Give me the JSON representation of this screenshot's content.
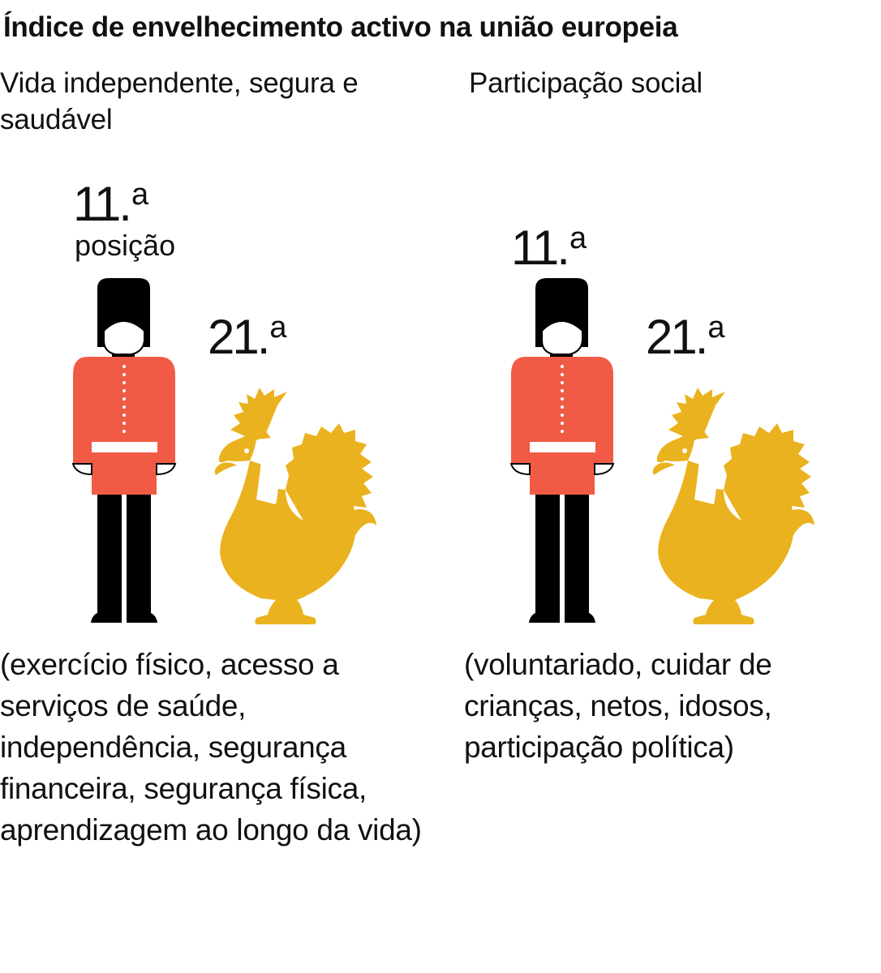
{
  "title": "Índice de envelhecimento activo na união europeia",
  "colors": {
    "guard_tunic": "#F15B45",
    "guard_black": "#000000",
    "rooster_gold": "#EAB21E",
    "text": "#111111"
  },
  "icons": {
    "uk": "royal-guard-icon",
    "france": "rooster-icon"
  },
  "chart_data": [
    {
      "type": "table",
      "category": "Vida independente, segura e saudável",
      "uk_rank": "11.",
      "uk_rank_suffix": "a",
      "france_rank": "21.",
      "france_rank_suffix": "a",
      "rank_unit": "posição",
      "description": "(exercício físico, acesso a serviços de saúde, independência, segurança financeira, segurança física, aprendizagem ao longo da vida)"
    },
    {
      "type": "table",
      "category": "Participação social",
      "uk_rank": "11.",
      "uk_rank_suffix": "a",
      "france_rank": "21.",
      "france_rank_suffix": "a",
      "description": "(voluntariado, cuidar de crianças, netos, idosos, participação política)"
    }
  ]
}
